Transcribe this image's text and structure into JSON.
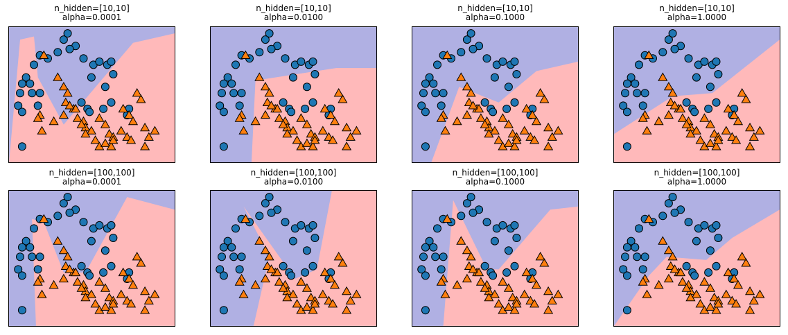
{
  "figure": {
    "colors": {
      "class0_region": "#b0b0e3",
      "class1_region": "#ffb9ba",
      "class0_marker": "#1f77b4",
      "class1_marker": "#ff7f0e",
      "marker_edge": "#000000"
    },
    "panels": [
      {
        "line1": "n_hidden=[10,10]",
        "line2": "alpha=0.0001",
        "boundary": [
          [
            -1.58,
            -0.55
          ],
          [
            -1.3,
            1.4
          ],
          [
            -0.95,
            1.45
          ],
          [
            -0.85,
            0.8
          ],
          [
            -0.2,
            0.05
          ],
          [
            1.55,
            1.35
          ],
          [
            2.6,
            1.5
          ]
        ]
      },
      {
        "line1": "n_hidden=[10,10]",
        "line2": "alpha=0.0100",
        "boundary": [
          [
            -1.58,
            -0.55
          ],
          [
            -0.55,
            -0.55
          ],
          [
            -0.45,
            0.75
          ],
          [
            1.6,
            0.95
          ],
          [
            2.6,
            0.95
          ]
        ]
      },
      {
        "line1": "n_hidden=[10,10]",
        "line2": "alpha=0.1000",
        "boundary": [
          [
            -1.58,
            -0.55
          ],
          [
            -1.1,
            -0.55
          ],
          [
            -0.4,
            0.65
          ],
          [
            0.6,
            0.4
          ],
          [
            1.55,
            0.9
          ],
          [
            2.6,
            1.05
          ]
        ]
      },
      {
        "line1": "n_hidden=[10,10]",
        "line2": "alpha=1.0000",
        "boundary": [
          [
            -1.58,
            -0.1
          ],
          [
            -0.1,
            0.5
          ],
          [
            0.9,
            0.55
          ],
          [
            2.6,
            1.4
          ]
        ]
      },
      {
        "line1": "n_hidden=[100,100]",
        "line2": "alpha=0.0001",
        "boundary": [
          [
            -1.58,
            -0.55
          ],
          [
            -0.9,
            -0.55
          ],
          [
            -1.0,
            1.15
          ],
          [
            -0.7,
            1.1
          ],
          [
            -0.2,
            0.3
          ],
          [
            0.35,
            0.3
          ],
          [
            1.4,
            1.5
          ],
          [
            2.6,
            1.3
          ]
        ]
      },
      {
        "line1": "n_hidden=[100,100]",
        "line2": "alpha=0.0100",
        "boundary": [
          [
            -1.58,
            -0.55
          ],
          [
            -0.5,
            -0.55
          ],
          [
            -0.1,
            0.55
          ],
          [
            -0.75,
            1.35
          ],
          [
            0.55,
            0.2
          ],
          [
            1.1,
            0.35
          ],
          [
            1.6,
            2.0
          ],
          [
            2.6,
            2.0
          ]
        ]
      },
      {
        "line1": "n_hidden=[100,100]",
        "line2": "alpha=0.1000",
        "boundary": [
          [
            -1.58,
            -0.55
          ],
          [
            -0.8,
            -0.55
          ],
          [
            -0.55,
            1.45
          ],
          [
            0.3,
            0.35
          ],
          [
            0.6,
            0.35
          ],
          [
            1.9,
            1.3
          ],
          [
            2.6,
            1.35
          ]
        ]
      },
      {
        "line1": "n_hidden=[100,100]",
        "line2": "alpha=1.0000",
        "boundary": [
          [
            -1.58,
            -0.55
          ],
          [
            -0.7,
            0.25
          ],
          [
            -0.25,
            0.55
          ],
          [
            0.75,
            0.5
          ],
          [
            1.4,
            0.85
          ],
          [
            2.6,
            1.3
          ]
        ]
      }
    ]
  },
  "chart_data": {
    "type": "scatter",
    "xlim": [
      -1.58,
      2.6
    ],
    "ylim": [
      -0.55,
      1.6
    ],
    "grid": false,
    "ticks": "none",
    "series": [
      {
        "marker": "circle",
        "color": "#1f77b4",
        "x": [
          -0.2,
          -0.1,
          0.1,
          0.3,
          0.55,
          0.7,
          0.9,
          1.0,
          1.05,
          -0.35,
          -0.05,
          0.5,
          0.85,
          -0.6,
          -0.8,
          -0.95,
          -1.15,
          -1.05,
          -1.3,
          -1.35,
          -1.25,
          -0.85,
          -0.8,
          -1.0,
          -1.25,
          0.25,
          0.4,
          0.45,
          0.8,
          1.0,
          1.45,
          1.4,
          -1.25
        ],
        "y": [
          1.4,
          1.5,
          1.3,
          1.1,
          1.0,
          1.05,
          1.0,
          1.05,
          0.85,
          1.2,
          1.25,
          0.8,
          0.65,
          1.1,
          1.15,
          1.0,
          0.8,
          0.7,
          0.55,
          0.35,
          0.7,
          0.35,
          0.55,
          0.55,
          0.25,
          0.4,
          0.3,
          0.25,
          0.3,
          0.4,
          0.3,
          0.2,
          -0.3
        ]
      },
      {
        "marker": "triangle",
        "color": "#ff7f0e",
        "x": [
          -0.7,
          -0.35,
          -0.2,
          -0.1,
          -0.15,
          -0.2,
          0.05,
          0.1,
          0.3,
          0.35,
          0.5,
          0.7,
          0.85,
          0.95,
          1.05,
          1.3,
          1.45,
          1.55,
          1.85,
          2.1,
          1.95,
          1.75,
          1.65,
          -0.8,
          -0.85,
          -0.75,
          -0.45,
          -0.05,
          0.15,
          0.25,
          0.35,
          0.6,
          0.7,
          0.85,
          1.0,
          1.05,
          1.25,
          1.4,
          1.5,
          1.85
        ],
        "y": [
          1.15,
          0.8,
          0.65,
          0.55,
          0.4,
          0.2,
          0.3,
          0.3,
          0.1,
          0.0,
          -0.05,
          0.15,
          0.05,
          -0.1,
          -0.15,
          0.3,
          0.2,
          0.1,
          0.0,
          -0.05,
          -0.15,
          0.45,
          0.55,
          0.2,
          0.15,
          -0.05,
          0.1,
          0.35,
          0.15,
          0.05,
          -0.1,
          -0.2,
          -0.3,
          -0.25,
          -0.3,
          -0.2,
          -0.05,
          -0.15,
          -0.2,
          -0.3
        ]
      }
    ]
  }
}
